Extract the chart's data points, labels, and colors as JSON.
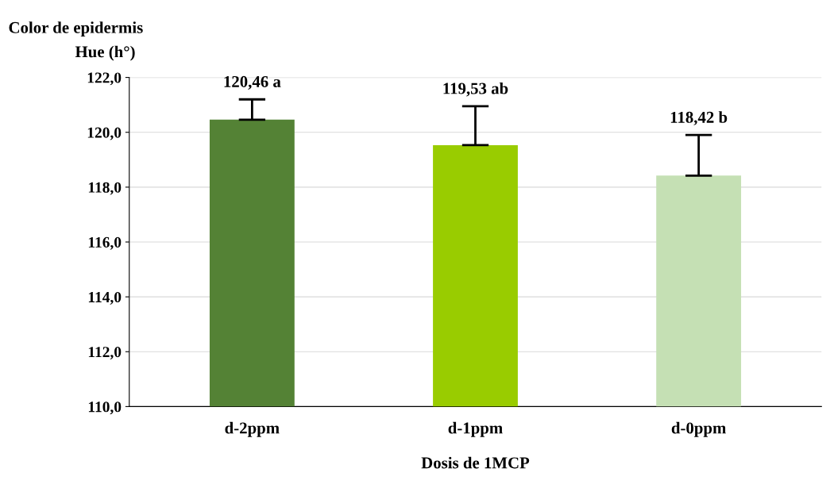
{
  "chart_data": {
    "type": "bar",
    "title": "Color de epidermis",
    "ylabel": "Hue (h°)",
    "xlabel": "Dosis de 1MCP",
    "categories": [
      "d-2ppm",
      "d-1ppm",
      "d-0ppm"
    ],
    "values": [
      120.46,
      119.53,
      118.42
    ],
    "colors": [
      "#548235",
      "#99cc00",
      "#c5e0b4"
    ],
    "errors": [
      [
        120.46,
        121.2
      ],
      [
        119.53,
        120.95
      ],
      [
        118.42,
        119.9
      ]
    ],
    "value_labels": [
      "120,46 a",
      "119,53 ab",
      "118,42 b"
    ],
    "ylim": [
      110,
      122
    ],
    "yticks": [
      {
        "value": 110,
        "label": "110,0"
      },
      {
        "value": 112,
        "label": "112,0"
      },
      {
        "value": 114,
        "label": "114,0"
      },
      {
        "value": 116,
        "label": "116,0"
      },
      {
        "value": 118,
        "label": "118,0"
      },
      {
        "value": 120,
        "label": "120,0"
      },
      {
        "value": 122,
        "label": "122,0"
      }
    ],
    "grid": "y"
  }
}
